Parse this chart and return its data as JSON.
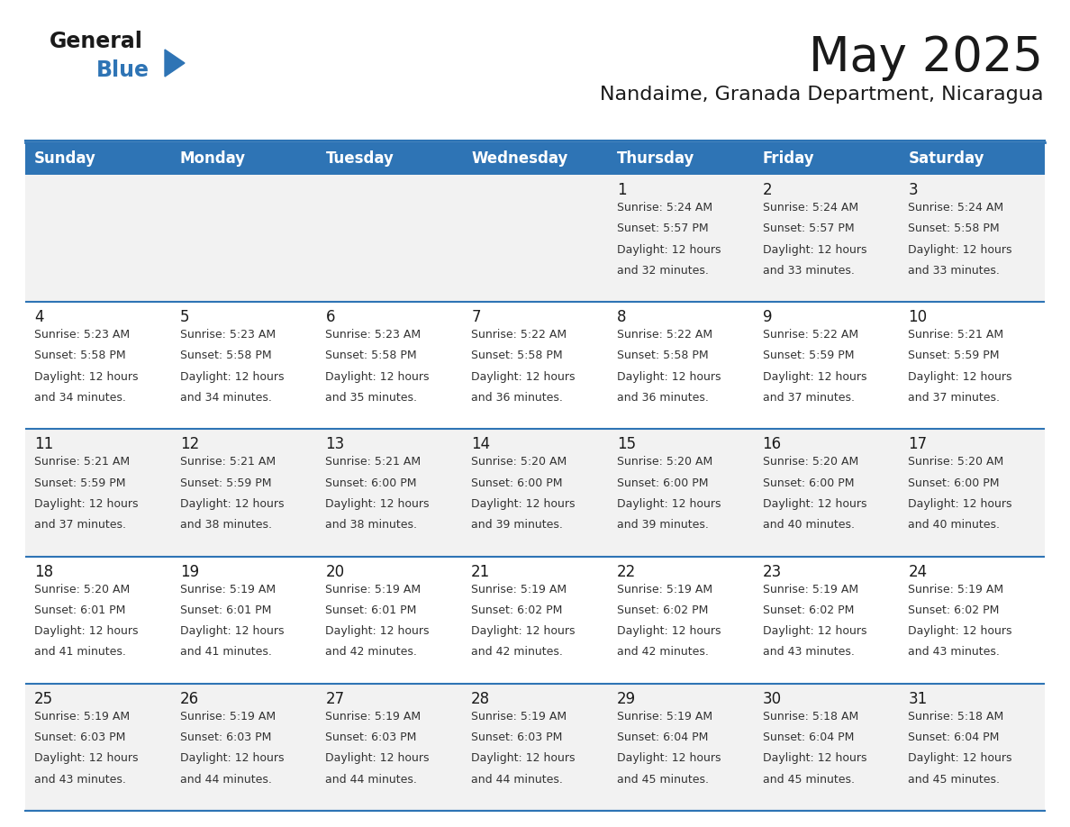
{
  "title": "May 2025",
  "subtitle": "Nandaime, Granada Department, Nicaragua",
  "header_bg": "#2E74B5",
  "header_text_color": "#FFFFFF",
  "day_names": [
    "Sunday",
    "Monday",
    "Tuesday",
    "Wednesday",
    "Thursday",
    "Friday",
    "Saturday"
  ],
  "row_bg_light": "#F2F2F2",
  "row_bg_white": "#FFFFFF",
  "cell_border_color": "#2E74B5",
  "day_num_color": "#1a1a1a",
  "info_text_color": "#333333",
  "title_fontsize": 36,
  "subtitle_fontsize": 16,
  "header_fontsize": 12,
  "day_num_fontsize": 12,
  "info_fontsize": 9,
  "logo_general_color": "#1a1a1a",
  "logo_blue_color": "#2E74B5",
  "logo_triangle_color": "#2E74B5",
  "calendar": [
    [
      null,
      null,
      null,
      null,
      {
        "day": 1,
        "sunrise": "5:24 AM",
        "sunset": "5:57 PM",
        "daylight": "12 hours and 32 minutes"
      },
      {
        "day": 2,
        "sunrise": "5:24 AM",
        "sunset": "5:57 PM",
        "daylight": "12 hours and 33 minutes"
      },
      {
        "day": 3,
        "sunrise": "5:24 AM",
        "sunset": "5:58 PM",
        "daylight": "12 hours and 33 minutes"
      }
    ],
    [
      {
        "day": 4,
        "sunrise": "5:23 AM",
        "sunset": "5:58 PM",
        "daylight": "12 hours and 34 minutes"
      },
      {
        "day": 5,
        "sunrise": "5:23 AM",
        "sunset": "5:58 PM",
        "daylight": "12 hours and 34 minutes"
      },
      {
        "day": 6,
        "sunrise": "5:23 AM",
        "sunset": "5:58 PM",
        "daylight": "12 hours and 35 minutes"
      },
      {
        "day": 7,
        "sunrise": "5:22 AM",
        "sunset": "5:58 PM",
        "daylight": "12 hours and 36 minutes"
      },
      {
        "day": 8,
        "sunrise": "5:22 AM",
        "sunset": "5:58 PM",
        "daylight": "12 hours and 36 minutes"
      },
      {
        "day": 9,
        "sunrise": "5:22 AM",
        "sunset": "5:59 PM",
        "daylight": "12 hours and 37 minutes"
      },
      {
        "day": 10,
        "sunrise": "5:21 AM",
        "sunset": "5:59 PM",
        "daylight": "12 hours and 37 minutes"
      }
    ],
    [
      {
        "day": 11,
        "sunrise": "5:21 AM",
        "sunset": "5:59 PM",
        "daylight": "12 hours and 37 minutes"
      },
      {
        "day": 12,
        "sunrise": "5:21 AM",
        "sunset": "5:59 PM",
        "daylight": "12 hours and 38 minutes"
      },
      {
        "day": 13,
        "sunrise": "5:21 AM",
        "sunset": "6:00 PM",
        "daylight": "12 hours and 38 minutes"
      },
      {
        "day": 14,
        "sunrise": "5:20 AM",
        "sunset": "6:00 PM",
        "daylight": "12 hours and 39 minutes"
      },
      {
        "day": 15,
        "sunrise": "5:20 AM",
        "sunset": "6:00 PM",
        "daylight": "12 hours and 39 minutes"
      },
      {
        "day": 16,
        "sunrise": "5:20 AM",
        "sunset": "6:00 PM",
        "daylight": "12 hours and 40 minutes"
      },
      {
        "day": 17,
        "sunrise": "5:20 AM",
        "sunset": "6:00 PM",
        "daylight": "12 hours and 40 minutes"
      }
    ],
    [
      {
        "day": 18,
        "sunrise": "5:20 AM",
        "sunset": "6:01 PM",
        "daylight": "12 hours and 41 minutes"
      },
      {
        "day": 19,
        "sunrise": "5:19 AM",
        "sunset": "6:01 PM",
        "daylight": "12 hours and 41 minutes"
      },
      {
        "day": 20,
        "sunrise": "5:19 AM",
        "sunset": "6:01 PM",
        "daylight": "12 hours and 42 minutes"
      },
      {
        "day": 21,
        "sunrise": "5:19 AM",
        "sunset": "6:02 PM",
        "daylight": "12 hours and 42 minutes"
      },
      {
        "day": 22,
        "sunrise": "5:19 AM",
        "sunset": "6:02 PM",
        "daylight": "12 hours and 42 minutes"
      },
      {
        "day": 23,
        "sunrise": "5:19 AM",
        "sunset": "6:02 PM",
        "daylight": "12 hours and 43 minutes"
      },
      {
        "day": 24,
        "sunrise": "5:19 AM",
        "sunset": "6:02 PM",
        "daylight": "12 hours and 43 minutes"
      }
    ],
    [
      {
        "day": 25,
        "sunrise": "5:19 AM",
        "sunset": "6:03 PM",
        "daylight": "12 hours and 43 minutes"
      },
      {
        "day": 26,
        "sunrise": "5:19 AM",
        "sunset": "6:03 PM",
        "daylight": "12 hours and 44 minutes"
      },
      {
        "day": 27,
        "sunrise": "5:19 AM",
        "sunset": "6:03 PM",
        "daylight": "12 hours and 44 minutes"
      },
      {
        "day": 28,
        "sunrise": "5:19 AM",
        "sunset": "6:03 PM",
        "daylight": "12 hours and 44 minutes"
      },
      {
        "day": 29,
        "sunrise": "5:19 AM",
        "sunset": "6:04 PM",
        "daylight": "12 hours and 45 minutes"
      },
      {
        "day": 30,
        "sunrise": "5:18 AM",
        "sunset": "6:04 PM",
        "daylight": "12 hours and 45 minutes"
      },
      {
        "day": 31,
        "sunrise": "5:18 AM",
        "sunset": "6:04 PM",
        "daylight": "12 hours and 45 minutes"
      }
    ]
  ]
}
